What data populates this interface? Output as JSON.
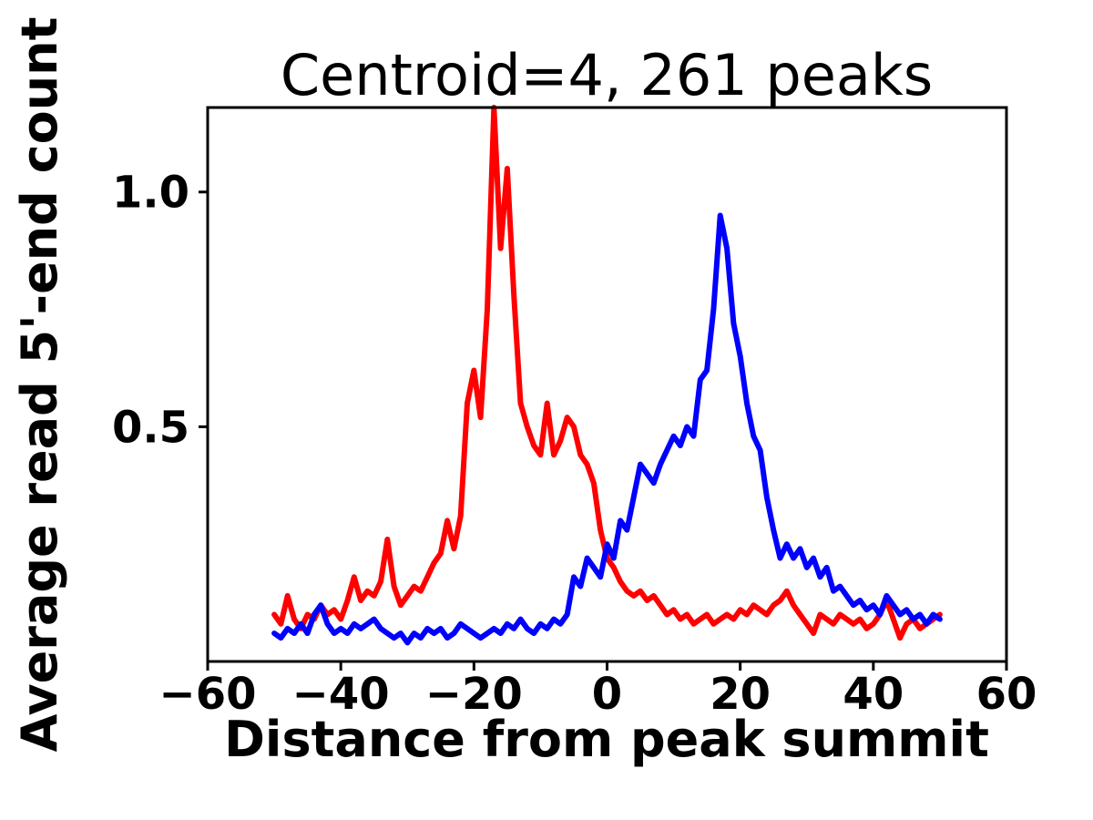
{
  "figure": {
    "background": "#ffffff",
    "axis_color": "#000000"
  },
  "chart_data": {
    "type": "line",
    "title": "Centroid=4, 261 peaks",
    "xlabel": "Distance from peak summit",
    "ylabel": "Average read 5'-end count",
    "xlim": [
      -60,
      60
    ],
    "ylim": [
      0,
      1.18
    ],
    "xticks": [
      -60,
      -40,
      -20,
      0,
      20,
      40,
      60
    ],
    "xtick_labels": [
      "−60",
      "−40",
      "−20",
      "0",
      "20",
      "40",
      "60"
    ],
    "yticks": [
      0.5,
      1.0
    ],
    "ytick_labels": [
      "0.5",
      "1.0"
    ],
    "grid": false,
    "legend": "none",
    "x": [
      -50,
      -49,
      -48,
      -47,
      -46,
      -45,
      -44,
      -43,
      -42,
      -41,
      -40,
      -39,
      -38,
      -37,
      -36,
      -35,
      -34,
      -33,
      -32,
      -31,
      -30,
      -29,
      -28,
      -27,
      -26,
      -25,
      -24,
      -23,
      -22,
      -21,
      -20,
      -19,
      -18,
      -17,
      -16,
      -15,
      -14,
      -13,
      -12,
      -11,
      -10,
      -9,
      -8,
      -7,
      -6,
      -5,
      -4,
      -3,
      -2,
      -1,
      0,
      1,
      2,
      3,
      4,
      5,
      6,
      7,
      8,
      9,
      10,
      11,
      12,
      13,
      14,
      15,
      16,
      17,
      18,
      19,
      20,
      21,
      22,
      23,
      24,
      25,
      26,
      27,
      28,
      29,
      30,
      31,
      32,
      33,
      34,
      35,
      36,
      37,
      38,
      39,
      40,
      41,
      42,
      43,
      44,
      45,
      46,
      47,
      48,
      49,
      50
    ],
    "series": [
      {
        "name": "red",
        "color": "#ff0000",
        "values": [
          0.1,
          0.08,
          0.14,
          0.09,
          0.07,
          0.1,
          0.09,
          0.12,
          0.1,
          0.11,
          0.09,
          0.13,
          0.18,
          0.13,
          0.15,
          0.14,
          0.17,
          0.26,
          0.16,
          0.12,
          0.14,
          0.16,
          0.15,
          0.18,
          0.21,
          0.23,
          0.3,
          0.24,
          0.31,
          0.55,
          0.62,
          0.52,
          0.75,
          1.18,
          0.88,
          1.05,
          0.78,
          0.55,
          0.5,
          0.46,
          0.44,
          0.55,
          0.44,
          0.47,
          0.52,
          0.5,
          0.44,
          0.42,
          0.38,
          0.28,
          0.22,
          0.2,
          0.17,
          0.15,
          0.14,
          0.15,
          0.13,
          0.14,
          0.12,
          0.1,
          0.11,
          0.09,
          0.1,
          0.08,
          0.09,
          0.1,
          0.08,
          0.09,
          0.1,
          0.09,
          0.11,
          0.1,
          0.12,
          0.11,
          0.1,
          0.12,
          0.13,
          0.15,
          0.12,
          0.1,
          0.08,
          0.06,
          0.1,
          0.09,
          0.08,
          0.1,
          0.09,
          0.08,
          0.09,
          0.07,
          0.08,
          0.1,
          0.13,
          0.09,
          0.05,
          0.08,
          0.09,
          0.07,
          0.08,
          0.09,
          0.1
        ]
      },
      {
        "name": "blue",
        "color": "#0000ff",
        "values": [
          0.06,
          0.05,
          0.07,
          0.06,
          0.08,
          0.06,
          0.1,
          0.12,
          0.08,
          0.06,
          0.07,
          0.06,
          0.08,
          0.07,
          0.08,
          0.09,
          0.07,
          0.06,
          0.05,
          0.06,
          0.04,
          0.06,
          0.05,
          0.07,
          0.06,
          0.07,
          0.05,
          0.06,
          0.08,
          0.07,
          0.06,
          0.05,
          0.06,
          0.07,
          0.06,
          0.08,
          0.07,
          0.09,
          0.07,
          0.06,
          0.08,
          0.07,
          0.09,
          0.08,
          0.1,
          0.18,
          0.16,
          0.22,
          0.2,
          0.18,
          0.25,
          0.22,
          0.3,
          0.28,
          0.35,
          0.42,
          0.4,
          0.38,
          0.42,
          0.45,
          0.48,
          0.46,
          0.5,
          0.48,
          0.6,
          0.62,
          0.75,
          0.95,
          0.88,
          0.72,
          0.65,
          0.55,
          0.48,
          0.45,
          0.35,
          0.28,
          0.22,
          0.25,
          0.22,
          0.24,
          0.2,
          0.22,
          0.18,
          0.2,
          0.15,
          0.16,
          0.14,
          0.12,
          0.13,
          0.11,
          0.12,
          0.1,
          0.14,
          0.12,
          0.1,
          0.11,
          0.09,
          0.1,
          0.08,
          0.1,
          0.09
        ]
      }
    ]
  }
}
